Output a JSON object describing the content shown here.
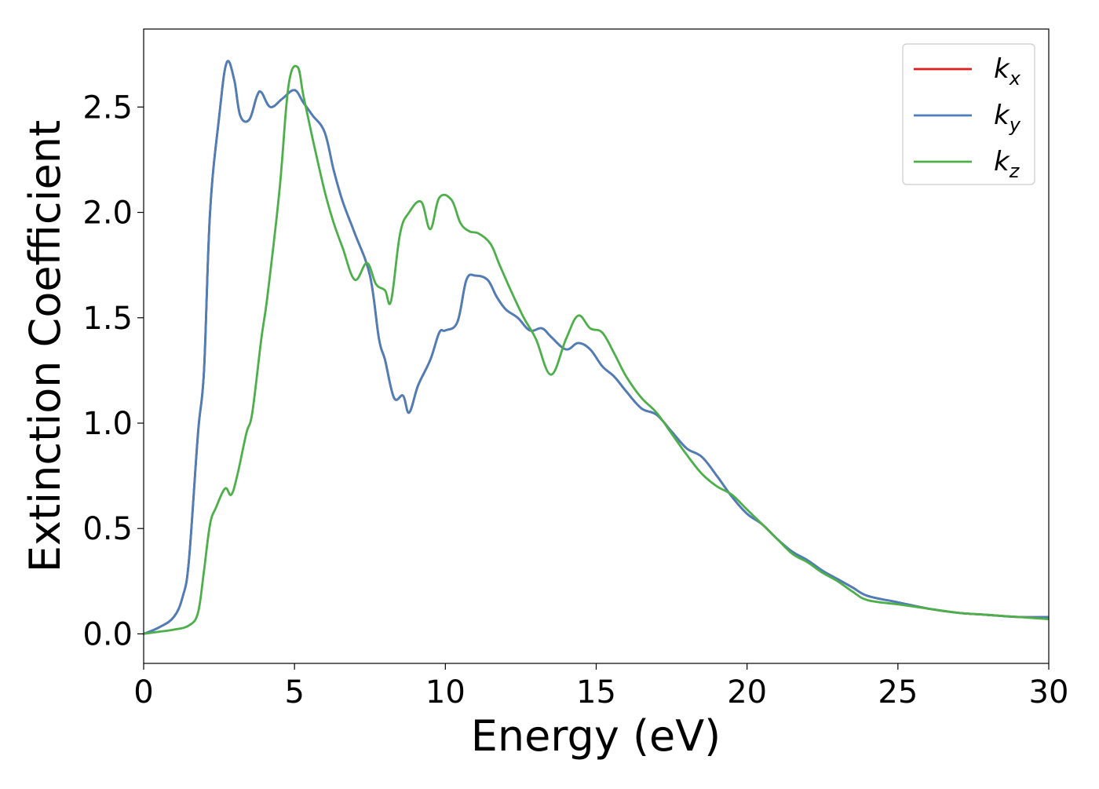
{
  "chart_data": {
    "type": "line",
    "title": "",
    "xlabel": "Energy (eV)",
    "ylabel": "Extinction Coefficient",
    "xlim": [
      0,
      30
    ],
    "ylim": [
      -0.14,
      2.87
    ],
    "xticks": [
      0,
      5,
      10,
      15,
      20,
      25,
      30
    ],
    "xtick_labels": [
      "0",
      "5",
      "10",
      "15",
      "20",
      "25",
      "30"
    ],
    "yticks": [
      0.0,
      0.5,
      1.0,
      1.5,
      2.0,
      2.5
    ],
    "ytick_labels": [
      "0.0",
      "0.5",
      "1.0",
      "1.5",
      "2.0",
      "2.5"
    ],
    "grid": false,
    "legend_position": "top-right",
    "series": [
      {
        "name": "k",
        "subscript": "x",
        "color": "#e41a1c",
        "x": [
          0,
          0.5,
          1,
          1.3,
          1.5,
          1.8,
          2,
          2.2,
          2.5,
          2.75,
          3,
          3.2,
          3.5,
          3.75,
          3.9,
          4.2,
          4.6,
          5,
          5.3,
          5.6,
          6,
          6.3,
          6.6,
          7,
          7.5,
          7.8,
          8,
          8.3,
          8.6,
          8.8,
          9.1,
          9.5,
          9.8,
          10,
          10.4,
          10.7,
          11,
          11.4,
          11.7,
          12,
          12.4,
          12.8,
          13.2,
          13.5,
          14,
          14.4,
          14.8,
          15.2,
          15.6,
          16,
          16.5,
          17,
          17.5,
          18,
          18.5,
          19,
          19.5,
          20,
          20.5,
          21,
          21.5,
          22,
          22.5,
          23,
          23.5,
          24,
          25,
          26,
          27,
          28,
          29,
          30
        ],
        "y": [
          0.0,
          0.03,
          0.08,
          0.18,
          0.35,
          0.95,
          1.25,
          2.0,
          2.45,
          2.71,
          2.63,
          2.46,
          2.44,
          2.55,
          2.57,
          2.5,
          2.54,
          2.58,
          2.52,
          2.46,
          2.38,
          2.2,
          2.05,
          1.9,
          1.7,
          1.4,
          1.3,
          1.12,
          1.13,
          1.05,
          1.18,
          1.3,
          1.43,
          1.44,
          1.48,
          1.68,
          1.7,
          1.68,
          1.6,
          1.54,
          1.5,
          1.44,
          1.45,
          1.41,
          1.35,
          1.38,
          1.35,
          1.27,
          1.22,
          1.15,
          1.07,
          1.04,
          0.96,
          0.88,
          0.84,
          0.75,
          0.65,
          0.57,
          0.52,
          0.45,
          0.39,
          0.35,
          0.3,
          0.26,
          0.22,
          0.18,
          0.15,
          0.12,
          0.1,
          0.09,
          0.08,
          0.08
        ]
      },
      {
        "name": "k",
        "subscript": "y",
        "color": "#4a7fb9",
        "x": [
          0,
          0.5,
          1,
          1.3,
          1.5,
          1.8,
          2,
          2.2,
          2.5,
          2.75,
          3,
          3.2,
          3.5,
          3.75,
          3.9,
          4.2,
          4.6,
          5,
          5.3,
          5.6,
          6,
          6.3,
          6.6,
          7,
          7.5,
          7.8,
          8,
          8.3,
          8.6,
          8.8,
          9.1,
          9.5,
          9.8,
          10,
          10.4,
          10.7,
          11,
          11.4,
          11.7,
          12,
          12.4,
          12.8,
          13.2,
          13.5,
          14,
          14.4,
          14.8,
          15.2,
          15.6,
          16,
          16.5,
          17,
          17.5,
          18,
          18.5,
          19,
          19.5,
          20,
          20.5,
          21,
          21.5,
          22,
          22.5,
          23,
          23.5,
          24,
          25,
          26,
          27,
          28,
          29,
          30
        ],
        "y": [
          0.0,
          0.03,
          0.08,
          0.18,
          0.35,
          0.95,
          1.25,
          2.0,
          2.45,
          2.71,
          2.63,
          2.46,
          2.44,
          2.55,
          2.57,
          2.5,
          2.54,
          2.58,
          2.52,
          2.46,
          2.38,
          2.2,
          2.05,
          1.9,
          1.7,
          1.4,
          1.3,
          1.12,
          1.13,
          1.05,
          1.18,
          1.3,
          1.43,
          1.44,
          1.48,
          1.68,
          1.7,
          1.68,
          1.6,
          1.54,
          1.5,
          1.44,
          1.45,
          1.41,
          1.35,
          1.38,
          1.35,
          1.27,
          1.22,
          1.15,
          1.07,
          1.04,
          0.96,
          0.88,
          0.84,
          0.75,
          0.65,
          0.57,
          0.52,
          0.45,
          0.39,
          0.35,
          0.3,
          0.26,
          0.22,
          0.18,
          0.15,
          0.12,
          0.1,
          0.09,
          0.08,
          0.08
        ]
      },
      {
        "name": "k",
        "subscript": "z",
        "color": "#4daf4a",
        "x": [
          0,
          0.5,
          1,
          1.5,
          1.8,
          2,
          2.2,
          2.4,
          2.7,
          2.9,
          3.1,
          3.4,
          3.6,
          3.9,
          4.1,
          4.5,
          4.8,
          5.1,
          5.3,
          5.6,
          6,
          6.3,
          6.6,
          7,
          7.4,
          7.7,
          8,
          8.2,
          8.5,
          8.8,
          9.2,
          9.5,
          9.8,
          10.2,
          10.5,
          10.8,
          11.1,
          11.5,
          11.8,
          12.2,
          12.6,
          13,
          13.5,
          14,
          14.4,
          14.8,
          15.2,
          15.6,
          16,
          16.5,
          17,
          17.5,
          18,
          18.5,
          19,
          19.5,
          20,
          20.5,
          21,
          21.5,
          22,
          22.5,
          23,
          23.5,
          24,
          25,
          26,
          27,
          28,
          29,
          30
        ],
        "y": [
          0.0,
          0.01,
          0.02,
          0.04,
          0.1,
          0.3,
          0.52,
          0.6,
          0.69,
          0.66,
          0.75,
          0.95,
          1.05,
          1.4,
          1.6,
          2.1,
          2.6,
          2.69,
          2.55,
          2.35,
          2.1,
          1.95,
          1.83,
          1.68,
          1.76,
          1.66,
          1.63,
          1.58,
          1.9,
          2.0,
          2.05,
          1.92,
          2.07,
          2.06,
          1.95,
          1.91,
          1.9,
          1.85,
          1.75,
          1.62,
          1.5,
          1.4,
          1.23,
          1.4,
          1.51,
          1.45,
          1.43,
          1.33,
          1.22,
          1.12,
          1.05,
          0.95,
          0.85,
          0.76,
          0.7,
          0.66,
          0.59,
          0.52,
          0.45,
          0.38,
          0.34,
          0.29,
          0.25,
          0.2,
          0.16,
          0.14,
          0.12,
          0.1,
          0.09,
          0.08,
          0.07
        ]
      }
    ]
  }
}
